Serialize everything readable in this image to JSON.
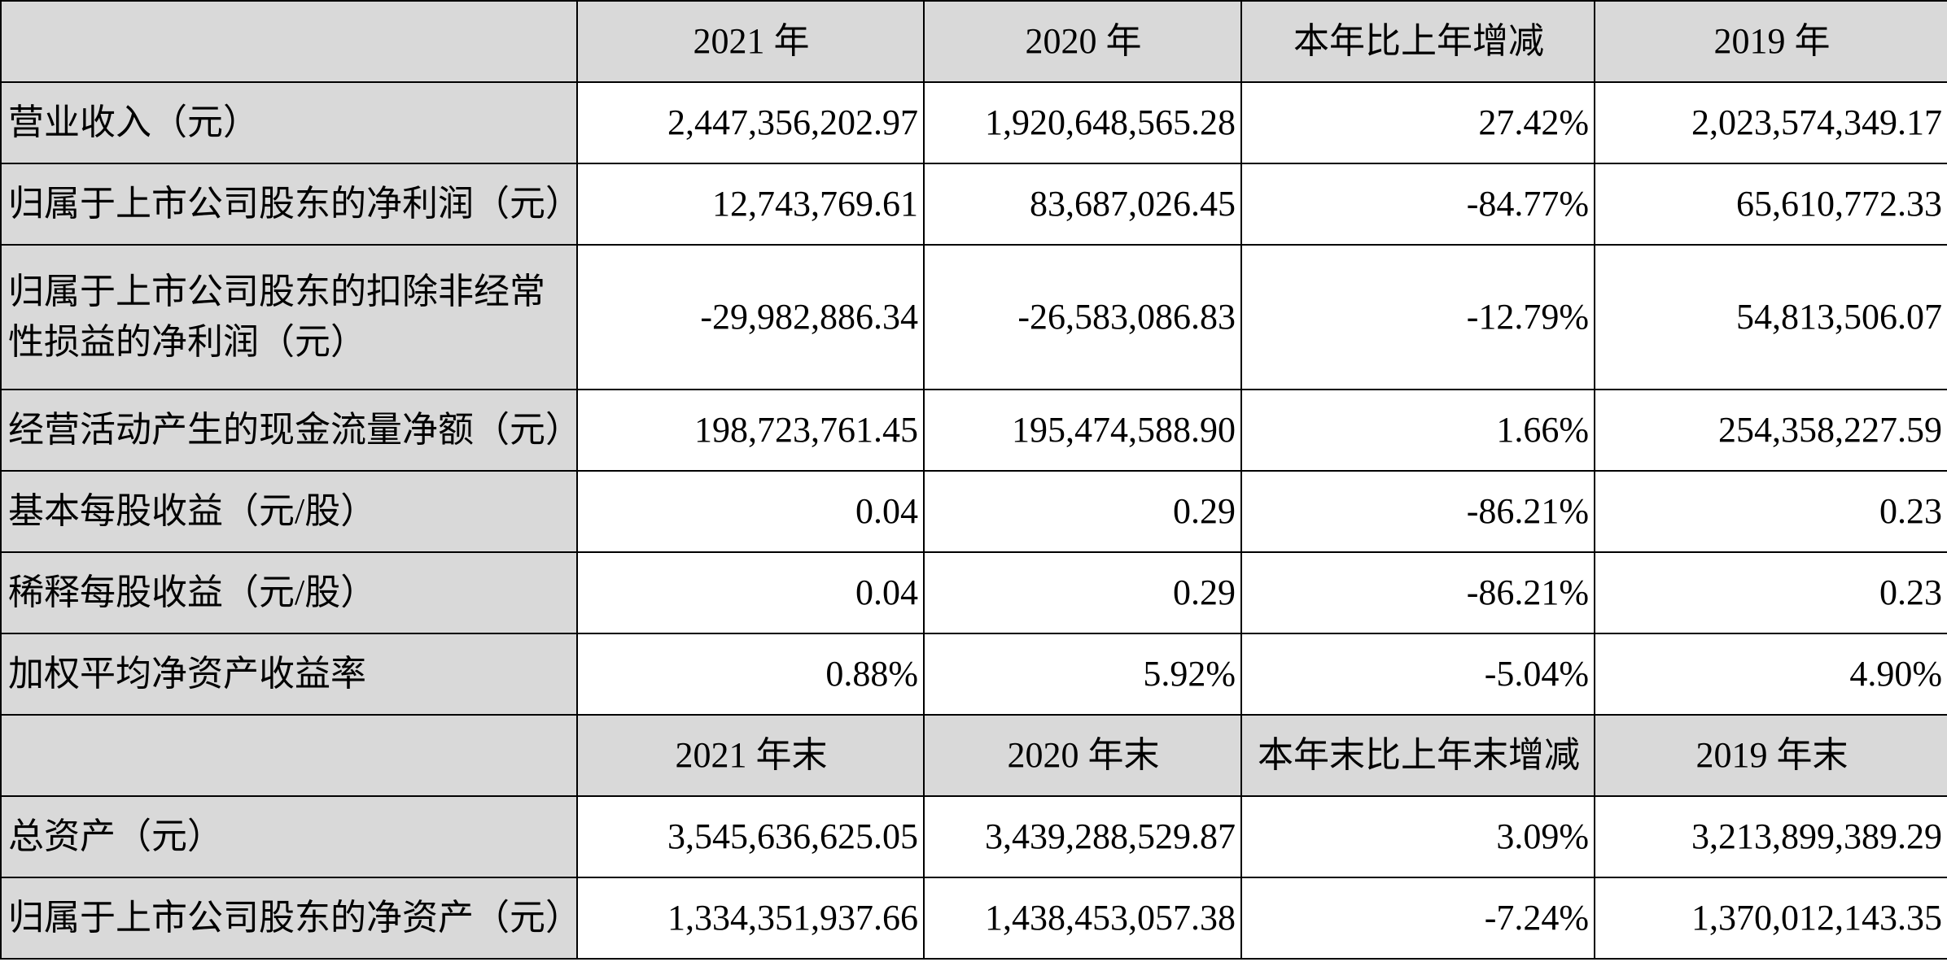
{
  "header_1": {
    "columns": [
      "2021 年",
      "2020 年",
      "本年比上年增减",
      "2019 年"
    ]
  },
  "rows_1": [
    {
      "label": "营业收入（元）",
      "values": [
        "2,447,356,202.97",
        "1,920,648,565.28",
        "27.42%",
        "2,023,574,349.17"
      ]
    },
    {
      "label": "归属于上市公司股东的净利润（元）",
      "values": [
        "12,743,769.61",
        "83,687,026.45",
        "-84.77%",
        "65,610,772.33"
      ]
    },
    {
      "label": "归属于上市公司股东的扣除非经常性损益的净利润（元）",
      "values": [
        "-29,982,886.34",
        "-26,583,086.83",
        "-12.79%",
        "54,813,506.07"
      ]
    },
    {
      "label": "经营活动产生的现金流量净额（元）",
      "values": [
        "198,723,761.45",
        "195,474,588.90",
        "1.66%",
        "254,358,227.59"
      ]
    },
    {
      "label": "基本每股收益（元/股）",
      "values": [
        "0.04",
        "0.29",
        "-86.21%",
        "0.23"
      ]
    },
    {
      "label": "稀释每股收益（元/股）",
      "values": [
        "0.04",
        "0.29",
        "-86.21%",
        "0.23"
      ]
    },
    {
      "label": "加权平均净资产收益率",
      "values": [
        "0.88%",
        "5.92%",
        "-5.04%",
        "4.90%"
      ]
    }
  ],
  "header_2": {
    "columns": [
      "2021 年末",
      "2020 年末",
      "本年末比上年末增减",
      "2019 年末"
    ]
  },
  "rows_2": [
    {
      "label": "总资产（元）",
      "values": [
        "3,545,636,625.05",
        "3,439,288,529.87",
        "3.09%",
        "3,213,899,389.29"
      ]
    },
    {
      "label": "归属于上市公司股东的净资产（元）",
      "values": [
        "1,334,351,937.66",
        "1,438,453,057.38",
        "-7.24%",
        "1,370,012,143.35"
      ]
    }
  ],
  "colors": {
    "label_background": "#d9d9d9",
    "value_background": "#ffffff",
    "border": "#000000",
    "text": "#000000"
  }
}
